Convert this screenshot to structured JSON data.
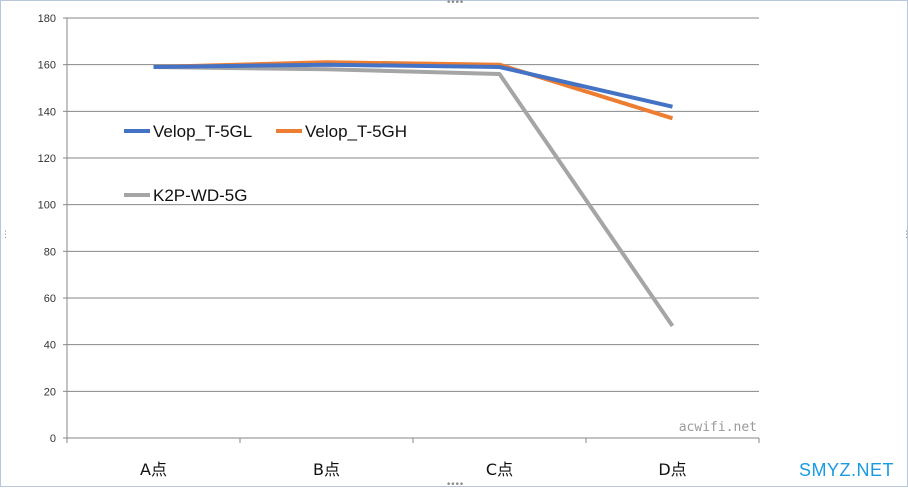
{
  "chart_data": {
    "type": "line",
    "categories": [
      "A点",
      "B点",
      "C点",
      "D点"
    ],
    "series": [
      {
        "name": "Velop_T-5GL",
        "values": [
          159,
          160,
          159,
          142
        ],
        "color": "#4472c4"
      },
      {
        "name": "Velop_T-5GH",
        "values": [
          159,
          161,
          160,
          137
        ],
        "color": "#ed7d31"
      },
      {
        "name": "K2P-WD-5G",
        "values": [
          159,
          158,
          156,
          48
        ],
        "color": "#a5a5a5"
      }
    ],
    "ylim": [
      0,
      180
    ],
    "yticks": [
      0,
      20,
      40,
      60,
      80,
      100,
      120,
      140,
      160,
      180
    ],
    "grid": true,
    "legend_position": "left, inside plot"
  },
  "watermarks": {
    "plot": "acwifi.net",
    "corner": "SMYZ.NET"
  },
  "colors": {
    "corner_watermark": "#1a9be0",
    "gridline": "#878787"
  }
}
